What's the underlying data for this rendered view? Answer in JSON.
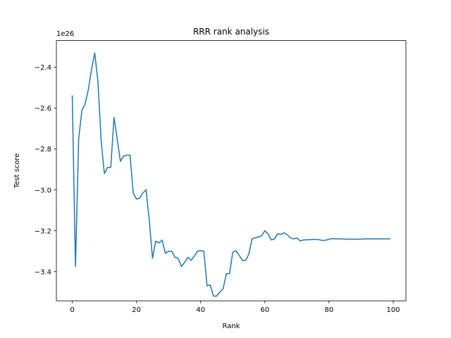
{
  "chart_data": {
    "type": "line",
    "title": "RRR rank analysis",
    "xlabel": "Rank",
    "ylabel": "Test score",
    "y_offset_label": "1e26",
    "xlim": [
      -4.95,
      103.95
    ],
    "ylim": [
      -3.543,
      -2.269
    ],
    "xticks": [
      0,
      20,
      40,
      60,
      80,
      100
    ],
    "yticks": [
      -3.4,
      -3.2,
      -3.0,
      -2.8,
      -2.6,
      -2.4
    ],
    "xtick_labels": [
      "0",
      "20",
      "40",
      "60",
      "80",
      "100"
    ],
    "ytick_labels": [
      "−3.4",
      "−3.2",
      "−3.0",
      "−2.8",
      "−2.6",
      "−2.4"
    ],
    "grid": false,
    "series": [
      {
        "color": "#1f77b4",
        "x": [
          0,
          1,
          2,
          3,
          4,
          5,
          6,
          7,
          8,
          9,
          10,
          11,
          12,
          13,
          14,
          15,
          16,
          17,
          18,
          19,
          20,
          21,
          22,
          23,
          24,
          25,
          26,
          27,
          28,
          29,
          30,
          31,
          32,
          33,
          34,
          35,
          36,
          37,
          38,
          39,
          40,
          41,
          42,
          43,
          44,
          45,
          46,
          47,
          48,
          49,
          50,
          51,
          52,
          53,
          54,
          55,
          56,
          57,
          58,
          59,
          60,
          61,
          62,
          63,
          64,
          65,
          66,
          67,
          68,
          69,
          70,
          71,
          72,
          73,
          74,
          75,
          76,
          77,
          78,
          79,
          80,
          81,
          82,
          83,
          84,
          85,
          86,
          87,
          88,
          89,
          90,
          91,
          92,
          93,
          94,
          95,
          96,
          97,
          98,
          99
        ],
        "values": [
          -2.54,
          -3.375,
          -2.75,
          -2.61,
          -2.58,
          -2.51,
          -2.41,
          -2.33,
          -2.47,
          -2.76,
          -2.92,
          -2.89,
          -2.89,
          -2.645,
          -2.75,
          -2.86,
          -2.835,
          -2.83,
          -2.83,
          -3.015,
          -3.045,
          -3.04,
          -3.015,
          -3.0,
          -3.15,
          -3.335,
          -3.25,
          -3.26,
          -3.245,
          -3.31,
          -3.3,
          -3.3,
          -3.33,
          -3.335,
          -3.375,
          -3.355,
          -3.33,
          -3.345,
          -3.325,
          -3.3,
          -3.298,
          -3.3,
          -3.47,
          -3.465,
          -3.52,
          -3.52,
          -3.5,
          -3.485,
          -3.41,
          -3.41,
          -3.305,
          -3.298,
          -3.32,
          -3.345,
          -3.345,
          -3.315,
          -3.24,
          -3.235,
          -3.23,
          -3.225,
          -3.2,
          -3.215,
          -3.245,
          -3.24,
          -3.215,
          -3.218,
          -3.21,
          -3.22,
          -3.235,
          -3.24,
          -3.235,
          -3.25,
          -3.245,
          -3.244,
          -3.244,
          -3.243,
          -3.243,
          -3.244,
          -3.248,
          -3.246,
          -3.242,
          -3.238,
          -3.24,
          -3.24,
          -3.24,
          -3.241,
          -3.241,
          -3.241,
          -3.241,
          -3.241,
          -3.241,
          -3.24,
          -3.24,
          -3.24,
          -3.24,
          -3.24,
          -3.24,
          -3.24,
          -3.24,
          -3.24
        ]
      }
    ]
  }
}
